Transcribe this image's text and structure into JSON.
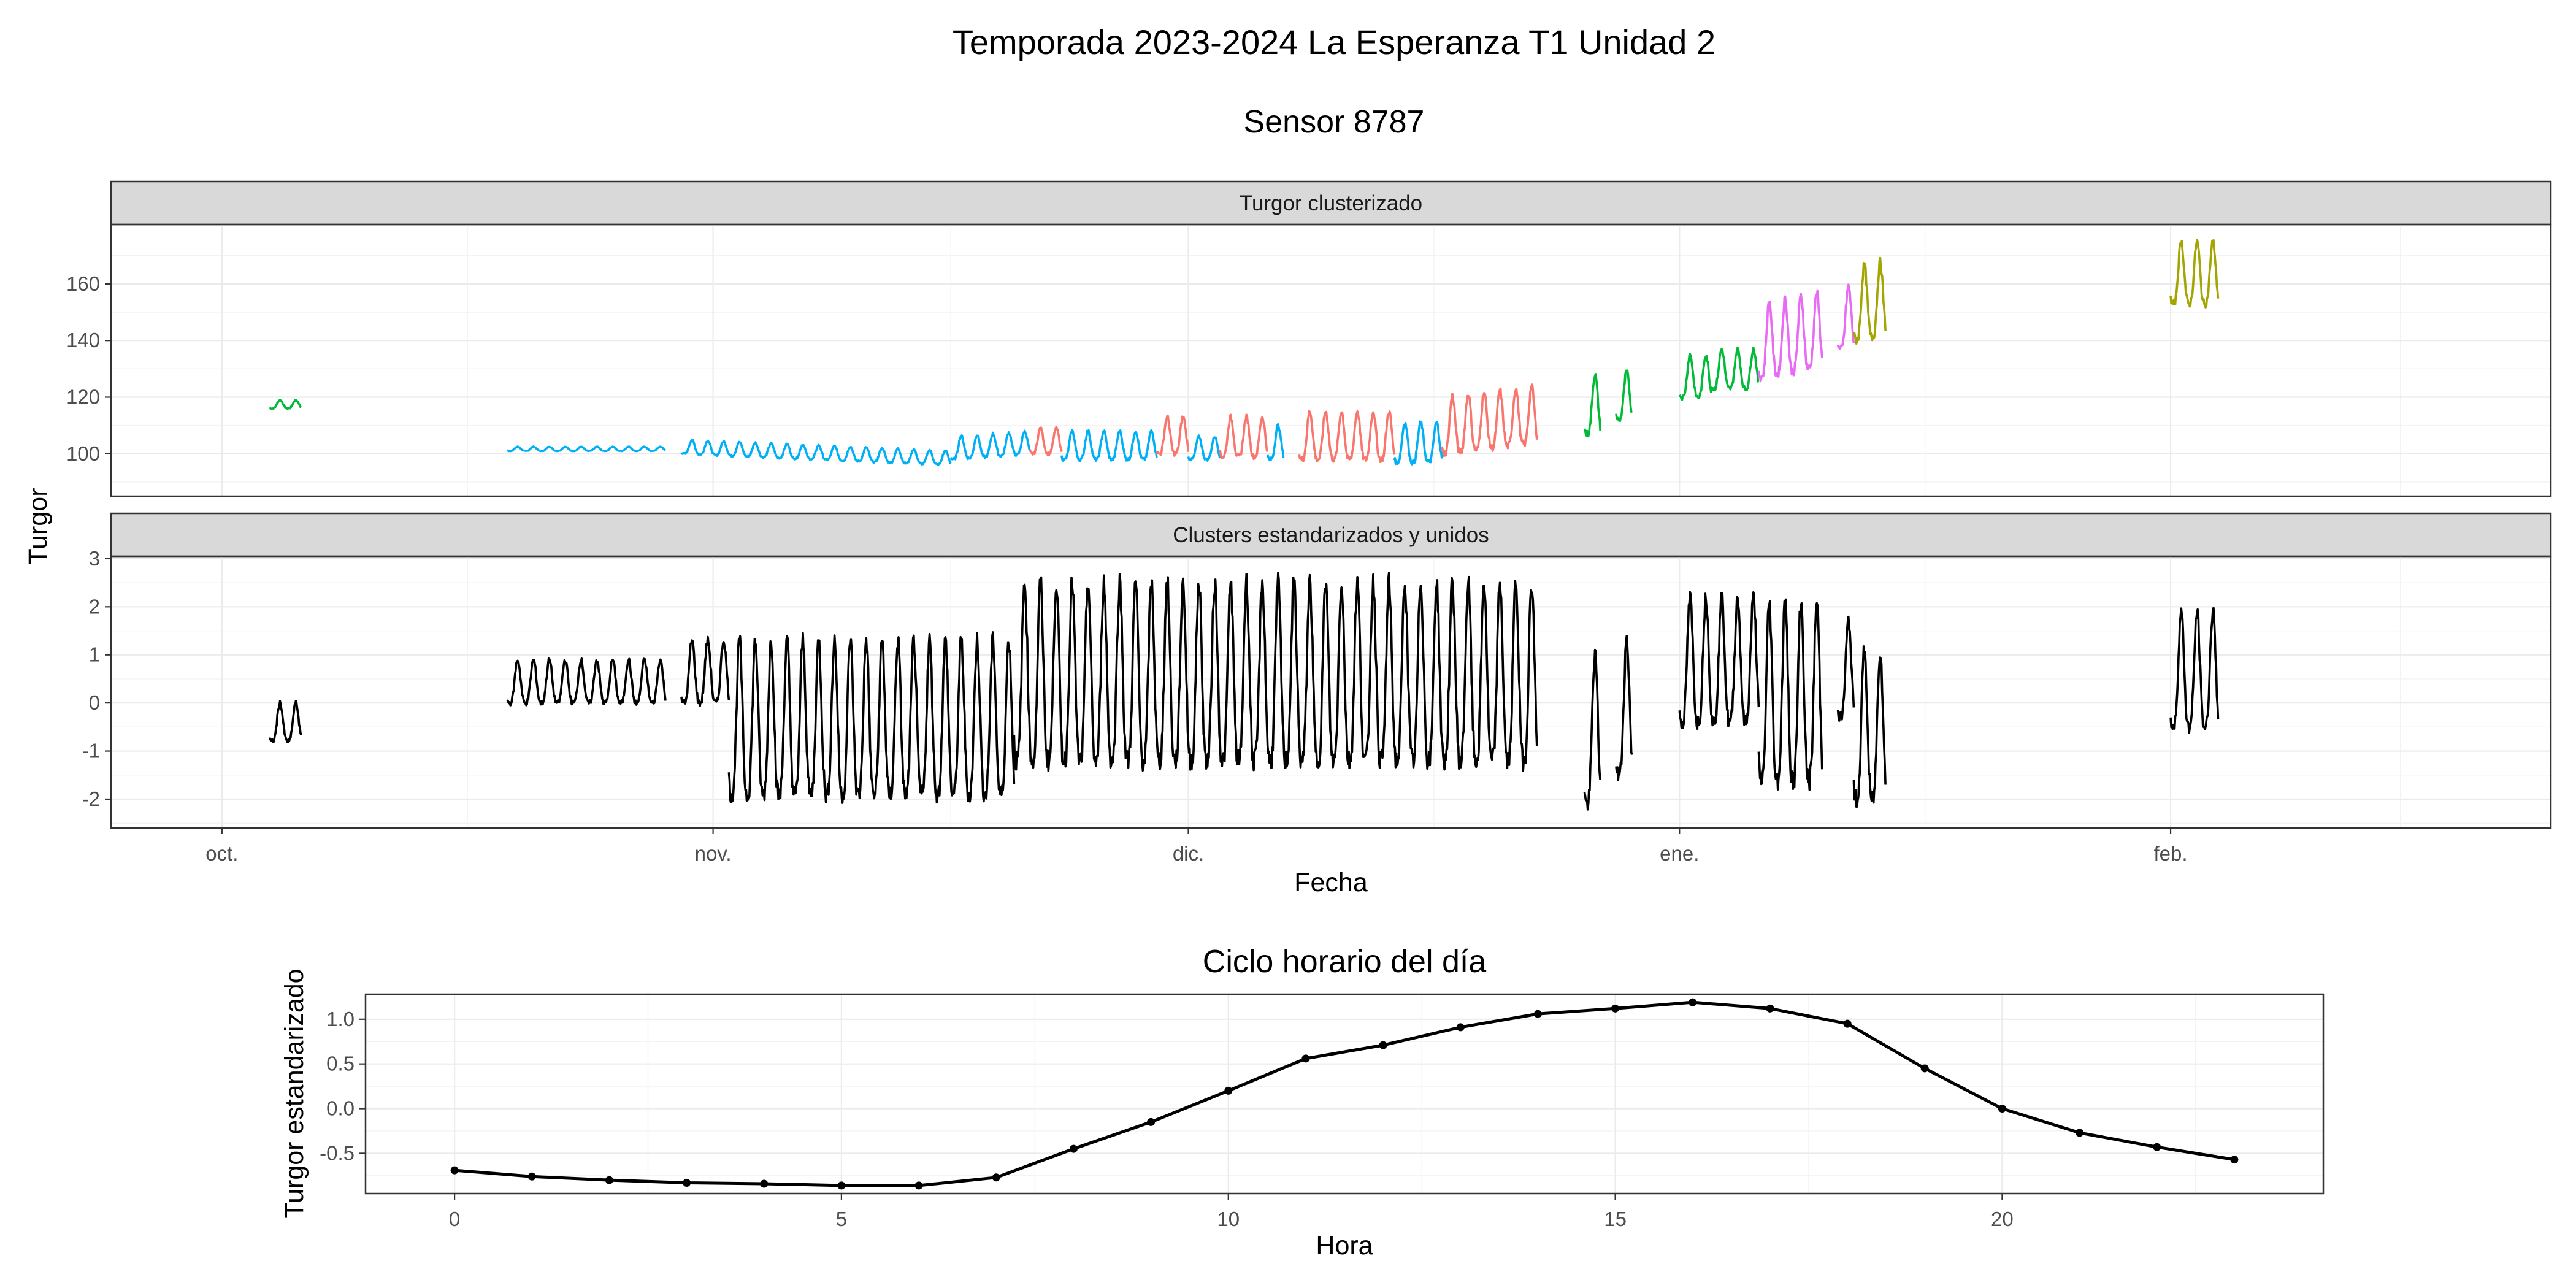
{
  "title": "Temporada 2023-2024 La Esperanza T1 Unidad 2",
  "subtitle": "Sensor 8787",
  "chart_data": [
    {
      "type": "line",
      "facet": "Turgor clusterizado",
      "xlabel": "Fecha",
      "ylabel": "Turgor",
      "x_ticks": [
        "oct.",
        "nov.",
        "dic.",
        "ene.",
        "feb."
      ],
      "y_ticks": [
        100,
        120,
        140,
        160
      ],
      "ylim": [
        85,
        181
      ],
      "grid": true,
      "cluster_colors": [
        "#F8766D",
        "#00BA38",
        "#00B0F6",
        "#E76BF3",
        "#A3A500"
      ],
      "segments": [
        {
          "start": "2023-10-04",
          "end": "2023-10-06",
          "color": "#00BA38",
          "base": 116,
          "amp": 3,
          "trend": 0
        },
        {
          "start": "2023-10-19",
          "end": "2023-10-29",
          "color": "#00B0F6",
          "base": 101,
          "amp": 1.5,
          "trend": 0
        },
        {
          "start": "2023-10-30",
          "end": "2023-11-16",
          "color": "#00B0F6",
          "base": 100,
          "amp": 5,
          "trend": -4
        },
        {
          "start": "2023-11-16",
          "end": "2023-11-21",
          "color": "#00B0F6",
          "base": 98,
          "amp": 8,
          "trend": 2
        },
        {
          "start": "2023-11-21",
          "end": "2023-11-23",
          "color": "#F8766D",
          "base": 100,
          "amp": 9,
          "trend": 0
        },
        {
          "start": "2023-11-23",
          "end": "2023-11-29",
          "color": "#00B0F6",
          "base": 98,
          "amp": 10,
          "trend": 0
        },
        {
          "start": "2023-11-29",
          "end": "2023-12-01",
          "color": "#F8766D",
          "base": 100,
          "amp": 13,
          "trend": 0
        },
        {
          "start": "2023-12-01",
          "end": "2023-12-03",
          "color": "#00B0F6",
          "base": 98,
          "amp": 8,
          "trend": 0
        },
        {
          "start": "2023-12-03",
          "end": "2023-12-06",
          "color": "#F8766D",
          "base": 99,
          "amp": 14,
          "trend": 0
        },
        {
          "start": "2023-12-06",
          "end": "2023-12-07",
          "color": "#00B0F6",
          "base": 98,
          "amp": 12,
          "trend": 0
        },
        {
          "start": "2023-12-08",
          "end": "2023-12-14",
          "color": "#F8766D",
          "base": 98,
          "amp": 17,
          "trend": 0
        },
        {
          "start": "2023-12-14",
          "end": "2023-12-17",
          "color": "#00B0F6",
          "base": 97,
          "amp": 14,
          "trend": 0
        },
        {
          "start": "2023-12-17",
          "end": "2023-12-23",
          "color": "#F8766D",
          "base": 100,
          "amp": 20,
          "trend": 4
        },
        {
          "start": "2023-12-26",
          "end": "2023-12-27",
          "color": "#00BA38",
          "base": 107,
          "amp": 21,
          "trend": 0
        },
        {
          "start": "2023-12-28",
          "end": "2023-12-29",
          "color": "#00BA38",
          "base": 112,
          "amp": 17,
          "trend": 0
        },
        {
          "start": "2024-01-01",
          "end": "2024-01-03",
          "color": "#00BA38",
          "base": 120,
          "amp": 15,
          "trend": 0
        },
        {
          "start": "2024-01-03",
          "end": "2024-01-06",
          "color": "#00BA38",
          "base": 123,
          "amp": 14,
          "trend": 0
        },
        {
          "start": "2024-01-06",
          "end": "2024-01-10",
          "color": "#E76BF3",
          "base": 127,
          "amp": 26,
          "trend": 4
        },
        {
          "start": "2024-01-11",
          "end": "2024-01-12",
          "color": "#E76BF3",
          "base": 137,
          "amp": 22,
          "trend": 0
        },
        {
          "start": "2024-01-12",
          "end": "2024-01-14",
          "color": "#A3A500",
          "base": 140,
          "amp": 26,
          "trend": 2
        },
        {
          "start": "2024-02-01",
          "end": "2024-02-04",
          "color": "#A3A500",
          "base": 153,
          "amp": 22,
          "trend": 0
        }
      ]
    },
    {
      "type": "line",
      "facet": "Clusters estandarizados y unidos",
      "xlabel": "Fecha",
      "ylabel": "Turgor",
      "x_ticks": [
        "oct.",
        "nov.",
        "dic.",
        "ene.",
        "feb."
      ],
      "y_ticks": [
        -2,
        -1,
        0,
        1,
        2,
        3
      ],
      "ylim": [
        -2.6,
        3.05
      ],
      "grid": true,
      "color": "#000000",
      "segments": [
        {
          "start": "2023-10-04",
          "end": "2023-10-06",
          "base": -0.8,
          "amp": 0.8
        },
        {
          "start": "2023-10-19",
          "end": "2023-10-29",
          "base": 0.0,
          "amp": 0.9
        },
        {
          "start": "2023-10-30",
          "end": "2023-11-02",
          "base": 0.0,
          "amp": 1.3
        },
        {
          "start": "2023-11-02",
          "end": "2023-11-20",
          "base": -1.9,
          "amp": 3.2
        },
        {
          "start": "2023-11-20",
          "end": "2023-12-23",
          "base": -1.2,
          "amp": 3.7
        },
        {
          "start": "2023-12-26",
          "end": "2023-12-27",
          "base": -2.1,
          "amp": 3.1
        },
        {
          "start": "2023-12-28",
          "end": "2023-12-29",
          "base": -1.5,
          "amp": 2.8
        },
        {
          "start": "2024-01-01",
          "end": "2024-01-06",
          "base": -0.4,
          "amp": 2.6
        },
        {
          "start": "2024-01-06",
          "end": "2024-01-10",
          "base": -1.6,
          "amp": 3.7
        },
        {
          "start": "2024-01-11",
          "end": "2024-01-12",
          "base": -0.3,
          "amp": 2.0
        },
        {
          "start": "2024-01-12",
          "end": "2024-01-14",
          "base": -2.0,
          "amp": 3.1
        },
        {
          "start": "2024-02-01",
          "end": "2024-02-04",
          "base": -0.5,
          "amp": 2.4
        }
      ]
    },
    {
      "type": "line",
      "title": "Ciclo horario del día",
      "xlabel": "Hora",
      "ylabel": "Turgor estandarizado",
      "x": [
        0,
        1,
        2,
        3,
        4,
        5,
        6,
        7,
        8,
        9,
        10,
        11,
        12,
        13,
        14,
        15,
        16,
        17,
        18,
        19,
        20,
        21,
        22,
        23
      ],
      "y": [
        -0.69,
        -0.76,
        -0.8,
        -0.83,
        -0.84,
        -0.86,
        -0.86,
        -0.77,
        -0.45,
        -0.15,
        0.2,
        0.56,
        0.71,
        0.91,
        1.06,
        1.12,
        1.19,
        1.12,
        0.95,
        0.45,
        0.0,
        -0.27,
        -0.43,
        -0.57
      ],
      "x_ticks": [
        0,
        5,
        10,
        15,
        20
      ],
      "y_ticks": [
        -0.5,
        0.0,
        0.5,
        1.0
      ],
      "xlim": [
        -1.15,
        24.15
      ],
      "ylim": [
        -0.95,
        1.28
      ],
      "grid": true,
      "color": "#000000"
    }
  ]
}
